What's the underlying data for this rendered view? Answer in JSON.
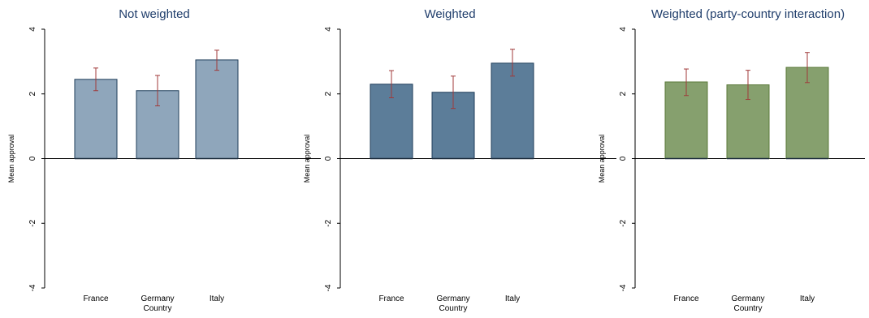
{
  "chart_data": [
    {
      "type": "bar",
      "title": "Not weighted",
      "xlabel": "Country",
      "ylabel": "Mean approval",
      "ylim": [
        -4,
        4
      ],
      "yticks": [
        -4,
        -2,
        0,
        2,
        4
      ],
      "categories": [
        "France",
        "Germany",
        "Italy"
      ],
      "values": [
        2.45,
        2.1,
        3.05
      ],
      "ci_low": [
        2.1,
        1.63,
        2.73
      ],
      "ci_high": [
        2.8,
        2.57,
        3.35
      ],
      "bar_color": "#8fa6bb",
      "grid": false
    },
    {
      "type": "bar",
      "title": "Weighted",
      "xlabel": "Country",
      "ylabel": "Mean approval",
      "ylim": [
        -4,
        4
      ],
      "yticks": [
        -4,
        -2,
        0,
        2,
        4
      ],
      "categories": [
        "France",
        "Germany",
        "Italy"
      ],
      "values": [
        2.3,
        2.05,
        2.95
      ],
      "ci_low": [
        1.88,
        1.55,
        2.55
      ],
      "ci_high": [
        2.72,
        2.55,
        3.38
      ],
      "bar_color": "#5c7d99",
      "grid": false
    },
    {
      "type": "bar",
      "title": "Weighted (party-country interaction)",
      "xlabel": "Country",
      "ylabel": "Mean approval",
      "ylim": [
        -4,
        4
      ],
      "yticks": [
        -4,
        -2,
        0,
        2,
        4
      ],
      "categories": [
        "France",
        "Germany",
        "Italy"
      ],
      "values": [
        2.37,
        2.28,
        2.82
      ],
      "ci_low": [
        1.95,
        1.83,
        2.35
      ],
      "ci_high": [
        2.77,
        2.73,
        3.28
      ],
      "bar_color": "#86a06e",
      "grid": false
    }
  ],
  "colors": {
    "axis": "#000000",
    "bar_outline": "#1f3d5a",
    "bar_outline_green": "#5b7a3a",
    "error_bar": "#a03a3a",
    "title": "#1f3d6b"
  }
}
